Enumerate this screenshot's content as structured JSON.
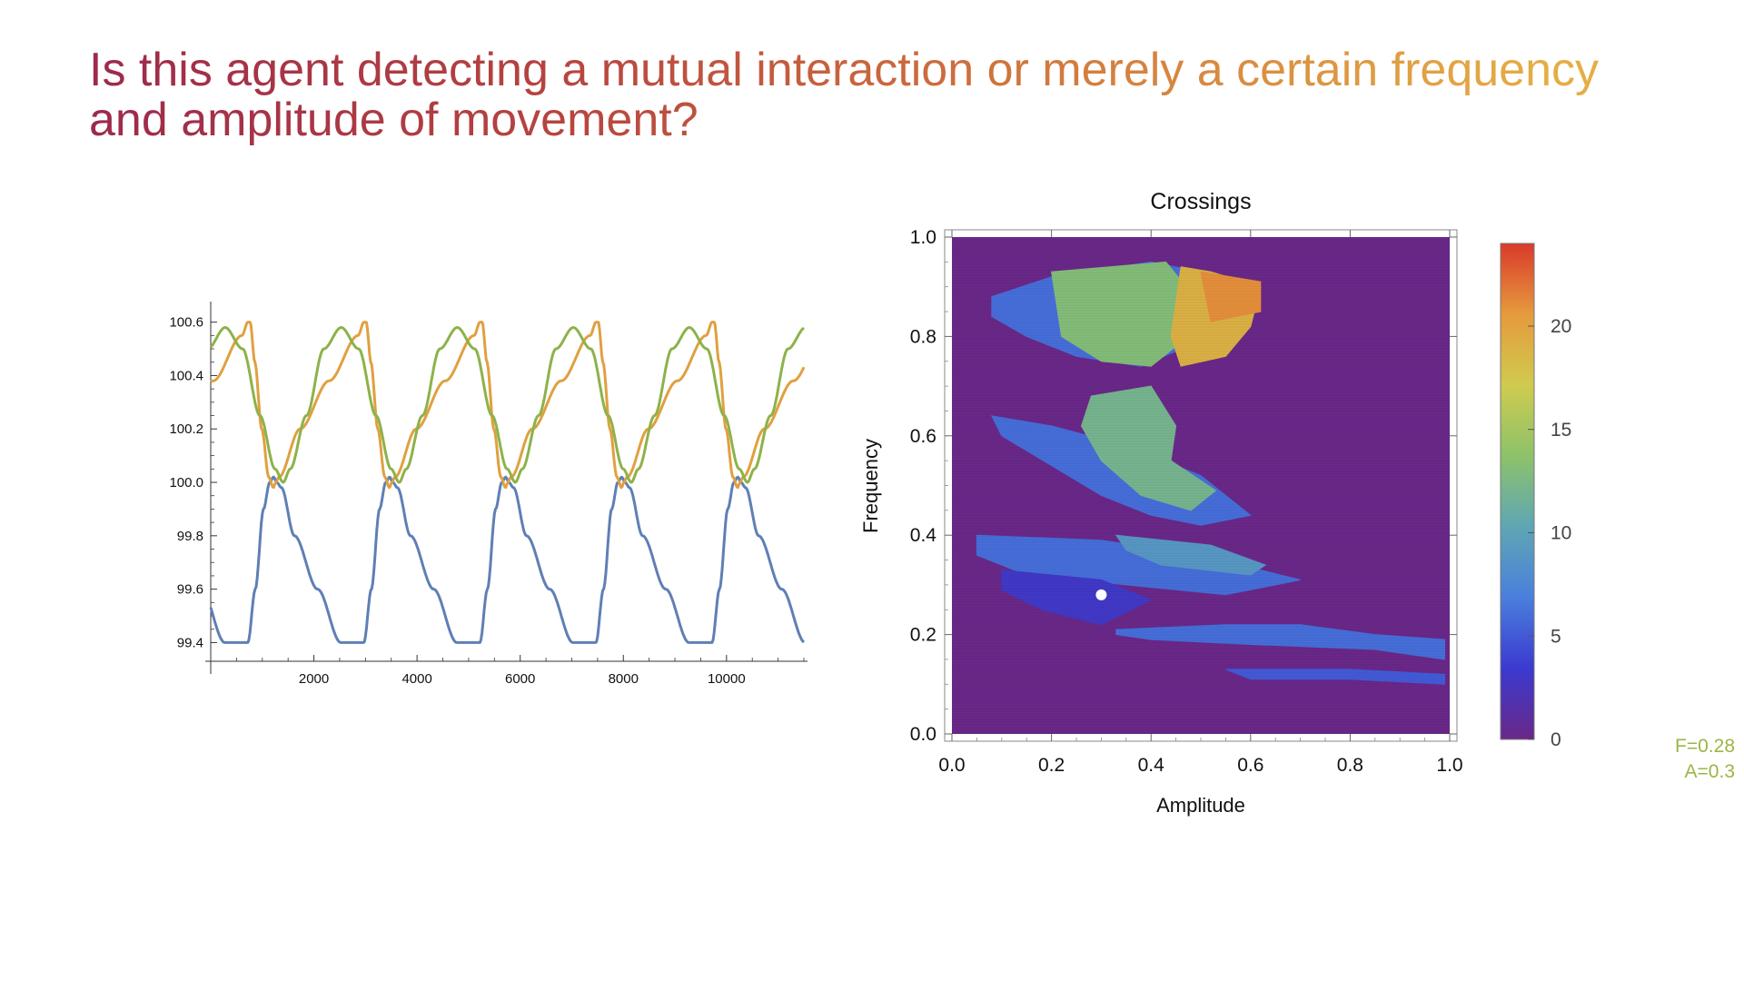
{
  "slide": {
    "title_line1": "Is this agent detecting a mutual interaction or merely a certain frequency",
    "title_line2": "and amplitude of movement?",
    "annotation": {
      "f_text": "F=0.28",
      "a_text": "A=0.3",
      "color": "#9bb545"
    }
  },
  "chart_data": [
    {
      "type": "line",
      "title": "",
      "xlabel": "",
      "ylabel": "",
      "xlim": [
        0,
        11500
      ],
      "ylim": [
        99.33,
        100.66
      ],
      "xticks": [
        2000,
        4000,
        6000,
        8000,
        10000
      ],
      "xtick_labels": [
        "2000",
        "4000",
        "6000",
        "8000",
        "10000"
      ],
      "yticks": [
        99.4,
        99.6,
        99.8,
        100.0,
        100.2,
        100.4,
        100.6
      ],
      "ytick_labels": [
        "99.4",
        "99.6",
        "99.8",
        "100.0",
        "100.2",
        "100.4",
        "100.6"
      ],
      "period": 2250,
      "series": [
        {
          "name": "blue",
          "color": "#5f7fb5",
          "cycle_phase": [
            0,
            0.064,
            0.135,
            0.188,
            0.222,
            0.249,
            0.289,
            0.401,
            0.601,
            0.801,
            1.0
          ],
          "cycle_value": [
            99.4,
            99.6,
            99.9,
            100.0,
            100.02,
            100.0,
            99.98,
            99.8,
            99.6,
            99.4,
            99.4
          ],
          "phase_offset": 720
        },
        {
          "name": "orange",
          "color": "#e0a040",
          "cycle_phase": [
            0,
            0.02,
            0.06,
            0.12,
            0.18,
            0.22,
            0.24,
            0.268,
            0.45,
            0.7,
            0.95,
            1.0
          ],
          "cycle_value": [
            100.6,
            100.6,
            100.45,
            100.2,
            100.02,
            99.98,
            100.0,
            100.02,
            100.2,
            100.38,
            100.55,
            100.6
          ],
          "phase_offset": 720
        },
        {
          "name": "green",
          "color": "#8db24a",
          "cycle_phase": [
            0,
            0.15,
            0.3,
            0.43,
            0.5,
            0.56,
            0.7,
            0.85,
            1.0
          ],
          "cycle_value": [
            100.58,
            100.5,
            100.25,
            100.05,
            100.0,
            100.05,
            100.25,
            100.5,
            100.58
          ],
          "phase_offset": 280
        }
      ]
    },
    {
      "type": "heatmap",
      "title": "Crossings",
      "xlabel": "Amplitude",
      "ylabel": "Frequency",
      "xlim": [
        0,
        1
      ],
      "ylim": [
        0,
        1
      ],
      "xticks": [
        0.0,
        0.2,
        0.4,
        0.6,
        0.8,
        1.0
      ],
      "xtick_labels": [
        "0.0",
        "0.2",
        "0.4",
        "0.6",
        "0.8",
        "1.0"
      ],
      "yticks": [
        0.0,
        0.2,
        0.4,
        0.6,
        0.8,
        1.0
      ],
      "ytick_labels": [
        "0.0",
        "0.2",
        "0.4",
        "0.6",
        "0.8",
        "1.0"
      ],
      "background_value": 0,
      "regions": [
        {
          "poly": [
            [
              0.08,
              0.88
            ],
            [
              0.2,
              0.92
            ],
            [
              0.4,
              0.95
            ],
            [
              0.55,
              0.92
            ],
            [
              0.62,
              0.86
            ],
            [
              0.45,
              0.77
            ],
            [
              0.38,
              0.74
            ],
            [
              0.25,
              0.76
            ],
            [
              0.15,
              0.8
            ],
            [
              0.08,
              0.84
            ]
          ],
          "value": 6
        },
        {
          "poly": [
            [
              0.2,
              0.93
            ],
            [
              0.43,
              0.95
            ],
            [
              0.47,
              0.9
            ],
            [
              0.45,
              0.78
            ],
            [
              0.4,
              0.74
            ],
            [
              0.3,
              0.75
            ],
            [
              0.22,
              0.8
            ]
          ],
          "value": 13
        },
        {
          "poly": [
            [
              0.46,
              0.94
            ],
            [
              0.52,
              0.93
            ],
            [
              0.62,
              0.9
            ],
            [
              0.6,
              0.82
            ],
            [
              0.55,
              0.76
            ],
            [
              0.46,
              0.74
            ],
            [
              0.44,
              0.8
            ]
          ],
          "value": 19
        },
        {
          "poly": [
            [
              0.5,
              0.93
            ],
            [
              0.62,
              0.91
            ],
            [
              0.62,
              0.85
            ],
            [
              0.52,
              0.83
            ]
          ],
          "value": 21
        },
        {
          "poly": [
            [
              0.08,
              0.64
            ],
            [
              0.2,
              0.62
            ],
            [
              0.35,
              0.58
            ],
            [
              0.5,
              0.52
            ],
            [
              0.6,
              0.44
            ],
            [
              0.5,
              0.42
            ],
            [
              0.4,
              0.44
            ],
            [
              0.3,
              0.48
            ],
            [
              0.2,
              0.54
            ],
            [
              0.1,
              0.6
            ]
          ],
          "value": 6
        },
        {
          "poly": [
            [
              0.28,
              0.68
            ],
            [
              0.4,
              0.7
            ],
            [
              0.45,
              0.62
            ],
            [
              0.44,
              0.55
            ],
            [
              0.53,
              0.49
            ],
            [
              0.48,
              0.45
            ],
            [
              0.38,
              0.48
            ],
            [
              0.3,
              0.55
            ],
            [
              0.26,
              0.62
            ]
          ],
          "value": 12
        },
        {
          "poly": [
            [
              0.05,
              0.4
            ],
            [
              0.3,
              0.39
            ],
            [
              0.5,
              0.36
            ],
            [
              0.62,
              0.33
            ],
            [
              0.7,
              0.31
            ],
            [
              0.55,
              0.28
            ],
            [
              0.35,
              0.3
            ],
            [
              0.15,
              0.32
            ],
            [
              0.05,
              0.36
            ]
          ],
          "value": 6
        },
        {
          "poly": [
            [
              0.33,
              0.4
            ],
            [
              0.52,
              0.38
            ],
            [
              0.63,
              0.34
            ],
            [
              0.6,
              0.32
            ],
            [
              0.42,
              0.34
            ],
            [
              0.35,
              0.37
            ]
          ],
          "value": 9
        },
        {
          "poly": [
            [
              0.33,
              0.21
            ],
            [
              0.55,
              0.22
            ],
            [
              0.7,
              0.22
            ],
            [
              0.85,
              0.2
            ],
            [
              0.99,
              0.19
            ],
            [
              0.99,
              0.15
            ],
            [
              0.85,
              0.17
            ],
            [
              0.6,
              0.18
            ],
            [
              0.4,
              0.19
            ],
            [
              0.33,
              0.2
            ]
          ],
          "value": 6
        },
        {
          "poly": [
            [
              0.55,
              0.13
            ],
            [
              0.8,
              0.13
            ],
            [
              0.99,
              0.12
            ],
            [
              0.99,
              0.1
            ],
            [
              0.8,
              0.11
            ],
            [
              0.6,
              0.11
            ]
          ],
          "value": 5
        },
        {
          "poly": [
            [
              0.1,
              0.33
            ],
            [
              0.3,
              0.31
            ],
            [
              0.4,
              0.27
            ],
            [
              0.3,
              0.22
            ],
            [
              0.18,
              0.25
            ],
            [
              0.1,
              0.29
            ]
          ],
          "value": 3
        }
      ],
      "colorbar": {
        "range": [
          0,
          24
        ],
        "ticks": [
          0,
          5,
          10,
          15,
          20
        ],
        "tick_labels": [
          "0",
          "5",
          "10",
          "15",
          "20"
        ],
        "stops": [
          "#6a2888",
          "#3b3ad0",
          "#4a7fdc",
          "#5fa6b4",
          "#8dc26a",
          "#cfcb4f",
          "#e69a3d",
          "#d93a2b"
        ]
      },
      "marker": {
        "x": 0.3,
        "y": 0.28,
        "color": "#ffffff"
      }
    }
  ]
}
